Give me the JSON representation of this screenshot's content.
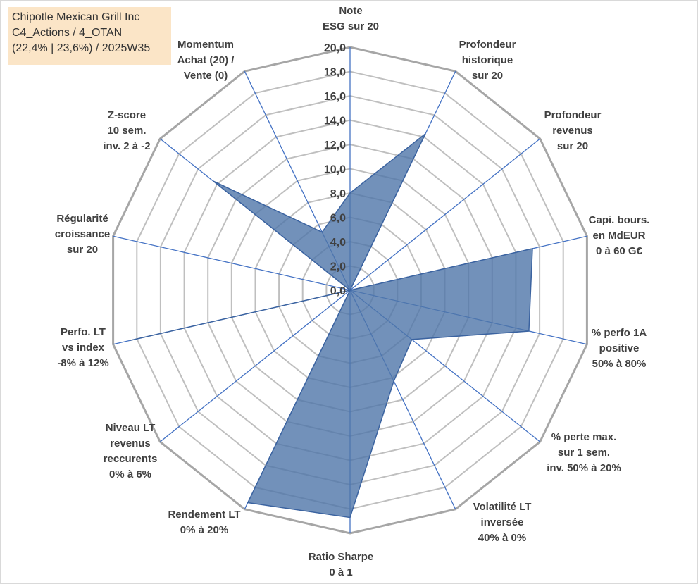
{
  "title_lines": [
    "Chipotle Mexican Grill Inc",
    "C4_Actions / 4_OTAN",
    "(22,4% | 23,6%) / 2025W35"
  ],
  "chart_data": {
    "type": "radar",
    "rmin": 0,
    "rmax": 20,
    "tick_step": 2,
    "tick_labels": [
      "0,0",
      "2,0",
      "4,0",
      "6,0",
      "8,0",
      "10,0",
      "12,0",
      "14,0",
      "16,0",
      "18,0",
      "20,0"
    ],
    "categories": [
      [
        "Note",
        "ESG sur 20"
      ],
      [
        "Profondeur",
        "historique",
        "sur 20"
      ],
      [
        "Profondeur",
        "revenus",
        "sur 20"
      ],
      [
        "Capi. bours.",
        "en MdEUR",
        "0 à 60 G€"
      ],
      [
        "% perfo 1A",
        "positive",
        "50% à 80%"
      ],
      [
        "% perte max.",
        "sur 1 sem.",
        "inv. 50% à 20%"
      ],
      [
        "Volatilité LT",
        "inversée",
        "40% à 0%"
      ],
      [
        "Ratio Sharpe",
        "0 à 1"
      ],
      [
        "Rendement LT",
        "0% à 20%"
      ],
      [
        "Niveau LT",
        "revenus",
        "reccurents",
        "0% à 6%"
      ],
      [
        "Perfo. LT",
        "vs index",
        "-8% à 12%"
      ],
      [
        "Régularité",
        "croissance",
        "sur 20"
      ],
      [
        "Z-score",
        "10 sem.",
        "inv. 2 à -2"
      ],
      [
        "Momentum",
        "Achat (20) /",
        "Vente (0)"
      ]
    ],
    "values": [
      8,
      14.3,
      0,
      15.4,
      15.1,
      6.5,
      8.3,
      18.7,
      19.4,
      0,
      18.6,
      0,
      14.4,
      5.3
    ],
    "grid": true,
    "colors": {
      "fill": "#4f76a9",
      "stroke": "#3b63a0",
      "spoke": "#4472c4",
      "grid": "#bfbfbf",
      "outer_grid": "#a6a6a6"
    }
  }
}
